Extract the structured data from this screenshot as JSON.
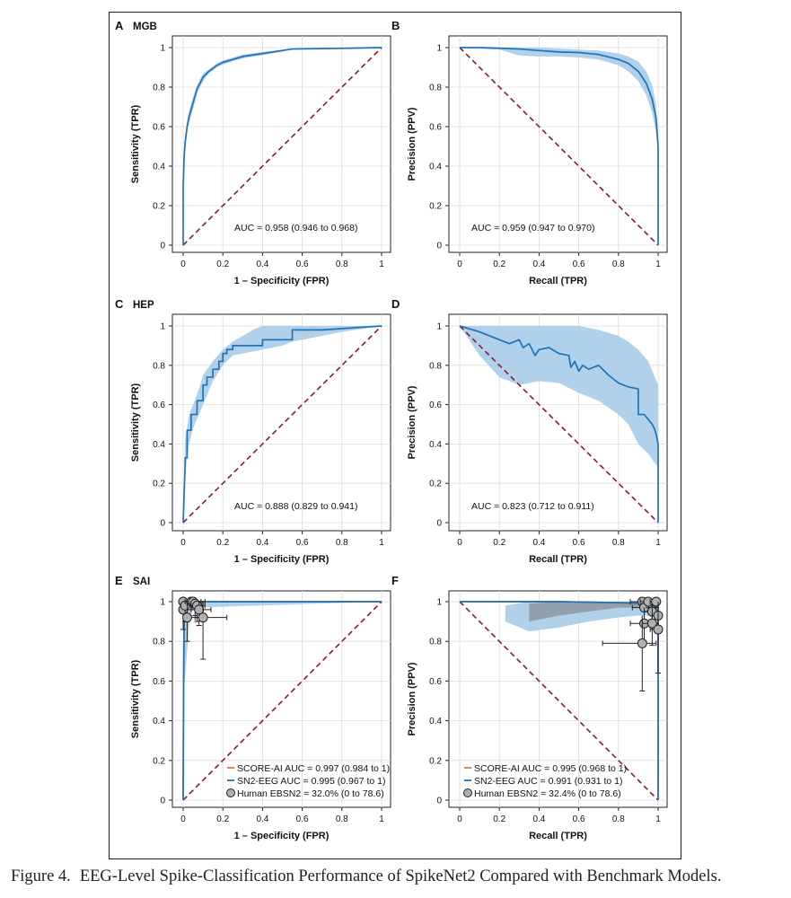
{
  "caption": {
    "label": "Figure 4.",
    "title": "EEG-Level Spike-Classification Performance of SpikeNet2 Compared with Benchmark Models."
  },
  "colors": {
    "curve": "#1f72b8",
    "band": "#a7cce7",
    "chance": "#8b1a2b",
    "score_ai": "#e07b39",
    "human_fill": "#b0b0b0",
    "human_band": "#8a8f99",
    "grid": "#dcdcdc"
  },
  "chart_data": [
    {
      "id": "A",
      "letter": "A",
      "title": "MGB",
      "type": "line",
      "xlabel": "1 – Specificity (FPR)",
      "ylabel": "Sensitivity (TPR)",
      "xlim": [
        0,
        1
      ],
      "ylim": [
        0,
        1
      ],
      "grid": true,
      "xticks": [
        "0",
        "0.2",
        "0.4",
        "0.6",
        "0.8",
        "1"
      ],
      "yticks": [
        "0",
        "0.2",
        "0.4",
        "0.6",
        "0.8",
        "1"
      ],
      "chance_line": "diagonal-up",
      "auc_text": "AUC = 0.958 (0.946 to 0.968)",
      "series": [
        {
          "x": [
            0,
            0,
            0.005,
            0.01,
            0.02,
            0.03,
            0.05,
            0.07,
            0.1,
            0.13,
            0.17,
            0.2,
            0.25,
            0.3,
            0.4,
            0.5,
            0.55,
            0.7,
            0.85,
            1
          ],
          "y": [
            0,
            0.3,
            0.45,
            0.52,
            0.6,
            0.65,
            0.72,
            0.79,
            0.85,
            0.88,
            0.91,
            0.925,
            0.94,
            0.955,
            0.97,
            0.985,
            0.993,
            0.995,
            0.997,
            1
          ]
        }
      ],
      "band": {
        "x": [
          0,
          0.005,
          0.01,
          0.02,
          0.03,
          0.05,
          0.07,
          0.1,
          0.13,
          0.17,
          0.2,
          0.25,
          0.3,
          0.4,
          0.5,
          0.55,
          0.7,
          1
        ],
        "lower": [
          0.27,
          0.42,
          0.49,
          0.57,
          0.62,
          0.69,
          0.77,
          0.83,
          0.87,
          0.9,
          0.915,
          0.93,
          0.945,
          0.962,
          0.98,
          0.99,
          0.993,
          1
        ],
        "upper": [
          0.33,
          0.48,
          0.55,
          0.63,
          0.68,
          0.75,
          0.81,
          0.87,
          0.89,
          0.92,
          0.935,
          0.95,
          0.965,
          0.978,
          0.99,
          0.996,
          0.997,
          1
        ]
      }
    },
    {
      "id": "B",
      "letter": "B",
      "title": "",
      "type": "line",
      "xlabel": "Recall (TPR)",
      "ylabel": "Precision (PPV)",
      "xlim": [
        0,
        1
      ],
      "ylim": [
        0,
        1
      ],
      "grid": true,
      "xticks": [
        "0",
        "0.2",
        "0.4",
        "0.6",
        "0.8",
        "1"
      ],
      "yticks": [
        "0",
        "0.2",
        "0.4",
        "0.6",
        "0.8",
        "1"
      ],
      "chance_line": "diagonal-down",
      "auc_text": "AUC = 0.959 (0.947 to 0.970)",
      "series": [
        {
          "x": [
            0,
            0.1,
            0.2,
            0.3,
            0.4,
            0.5,
            0.6,
            0.7,
            0.8,
            0.85,
            0.9,
            0.94,
            0.97,
            0.99,
            1,
            1
          ],
          "y": [
            1,
            1,
            0.997,
            0.993,
            0.985,
            0.978,
            0.975,
            0.965,
            0.94,
            0.92,
            0.88,
            0.82,
            0.74,
            0.64,
            0.5,
            0
          ]
        }
      ],
      "band": {
        "x": [
          0,
          0.2,
          0.3,
          0.4,
          0.5,
          0.6,
          0.7,
          0.8,
          0.85,
          0.9,
          0.94,
          0.97,
          0.99,
          1
        ],
        "lower": [
          1,
          0.99,
          0.96,
          0.955,
          0.955,
          0.95,
          0.94,
          0.91,
          0.88,
          0.83,
          0.76,
          0.67,
          0.57,
          0.45
        ],
        "upper": [
          1,
          1,
          1,
          1,
          0.995,
          0.99,
          0.985,
          0.97,
          0.955,
          0.93,
          0.88,
          0.81,
          0.71,
          0.55
        ]
      }
    },
    {
      "id": "C",
      "letter": "C",
      "title": "HEP",
      "type": "line",
      "xlabel": "1 – Specificity (FPR)",
      "ylabel": "Sensitivity (TPR)",
      "xlim": [
        0,
        1
      ],
      "ylim": [
        0,
        1
      ],
      "grid": true,
      "xticks": [
        "0",
        "0.2",
        "0.4",
        "0.6",
        "0.8",
        "1"
      ],
      "yticks": [
        "0",
        "0.2",
        "0.4",
        "0.6",
        "0.8",
        "1"
      ],
      "chance_line": "diagonal-up",
      "auc_text": "AUC = 0.888 (0.829 to 0.941)",
      "series": [
        {
          "x": [
            0,
            0.01,
            0.01,
            0.02,
            0.02,
            0.04,
            0.04,
            0.07,
            0.07,
            0.1,
            0.1,
            0.12,
            0.12,
            0.15,
            0.15,
            0.18,
            0.18,
            0.2,
            0.2,
            0.22,
            0.22,
            0.25,
            0.25,
            0.4,
            0.4,
            0.55,
            0.55,
            0.7,
            1
          ],
          "y": [
            0,
            0.3,
            0.33,
            0.33,
            0.47,
            0.47,
            0.55,
            0.55,
            0.62,
            0.62,
            0.7,
            0.7,
            0.74,
            0.74,
            0.78,
            0.78,
            0.82,
            0.82,
            0.86,
            0.86,
            0.88,
            0.88,
            0.9,
            0.9,
            0.93,
            0.93,
            0.98,
            0.98,
            1
          ]
        }
      ],
      "band": {
        "x": [
          0,
          0.01,
          0.03,
          0.05,
          0.08,
          0.1,
          0.15,
          0.2,
          0.25,
          0.3,
          0.35,
          0.4,
          0.5,
          0.55,
          0.6,
          0.7,
          0.8,
          1
        ],
        "lower": [
          0,
          0.25,
          0.4,
          0.48,
          0.55,
          0.6,
          0.72,
          0.8,
          0.85,
          0.86,
          0.87,
          0.88,
          0.9,
          0.92,
          0.93,
          0.95,
          0.97,
          1
        ],
        "upper": [
          0,
          0.42,
          0.55,
          0.6,
          0.68,
          0.75,
          0.82,
          0.88,
          0.92,
          0.95,
          0.98,
          1,
          1,
          1,
          1,
          1,
          1,
          1
        ]
      }
    },
    {
      "id": "D",
      "letter": "D",
      "title": "",
      "type": "line",
      "xlabel": "Recall (TPR)",
      "ylabel": "Precision (PPV)",
      "xlim": [
        0,
        1
      ],
      "ylim": [
        0,
        1
      ],
      "grid": true,
      "xticks": [
        "0",
        "0.2",
        "0.4",
        "0.6",
        "0.8",
        "1"
      ],
      "yticks": [
        "0",
        "0.2",
        "0.4",
        "0.6",
        "0.8",
        "1"
      ],
      "chance_line": "diagonal-down",
      "auc_text": "AUC = 0.823 (0.712 to 0.911)",
      "series": [
        {
          "x": [
            0,
            0.1,
            0.2,
            0.25,
            0.3,
            0.32,
            0.35,
            0.38,
            0.4,
            0.45,
            0.5,
            0.55,
            0.56,
            0.58,
            0.6,
            0.62,
            0.65,
            0.7,
            0.75,
            0.8,
            0.85,
            0.9,
            0.9,
            0.93,
            0.97,
            0.98,
            0.99,
            1,
            1
          ],
          "y": [
            1,
            0.97,
            0.93,
            0.91,
            0.93,
            0.89,
            0.91,
            0.85,
            0.88,
            0.89,
            0.86,
            0.85,
            0.79,
            0.82,
            0.77,
            0.8,
            0.78,
            0.8,
            0.75,
            0.71,
            0.69,
            0.68,
            0.55,
            0.55,
            0.5,
            0.48,
            0.45,
            0.4,
            0
          ]
        }
      ],
      "band": {
        "x": [
          0,
          0.1,
          0.2,
          0.3,
          0.4,
          0.5,
          0.6,
          0.7,
          0.8,
          0.85,
          0.9,
          0.95,
          1
        ],
        "lower": [
          1,
          0.85,
          0.74,
          0.7,
          0.72,
          0.71,
          0.66,
          0.62,
          0.55,
          0.5,
          0.4,
          0.35,
          0.28
        ],
        "upper": [
          1,
          1,
          1,
          1,
          1,
          1,
          1,
          0.98,
          0.95,
          0.92,
          0.88,
          0.82,
          0.7
        ]
      }
    },
    {
      "id": "E",
      "letter": "E",
      "title": "SAI",
      "type": "line",
      "xlabel": "1 – Specificity (FPR)",
      "ylabel": "Sensitivity (TPR)",
      "xlim": [
        0,
        1
      ],
      "ylim": [
        0,
        1
      ],
      "grid": true,
      "xticks": [
        "0",
        "0.2",
        "0.4",
        "0.6",
        "0.8",
        "1"
      ],
      "yticks": [
        "0",
        "0.2",
        "0.4",
        "0.6",
        "0.8",
        "1"
      ],
      "chance_line": "diagonal-up",
      "series": [
        {
          "name": "SCORE-AI",
          "color_key": "score_ai",
          "x": [
            0,
            0.002,
            0.004,
            0.006,
            0.01,
            0.02,
            1
          ],
          "y": [
            0,
            0.6,
            0.85,
            0.95,
            0.99,
            1,
            1
          ]
        },
        {
          "name": "SN2-EEG",
          "color_key": "curve",
          "x": [
            0,
            0.002,
            0.004,
            0.006,
            0.01,
            0.02,
            0.05,
            1
          ],
          "y": [
            0,
            0.5,
            0.8,
            0.9,
            0.95,
            1,
            1,
            1
          ]
        }
      ],
      "band": {
        "x": [
          0,
          0.003,
          0.01,
          0.02,
          0.03,
          0.05,
          1
        ],
        "lower": [
          0.3,
          0.55,
          0.63,
          0.75,
          0.88,
          0.97,
          1
        ],
        "upper": [
          0.6,
          0.9,
          0.97,
          1,
          1,
          1,
          1
        ]
      },
      "human_points": [
        {
          "x": 0.0,
          "y": 1.0,
          "x_lo": 0.0,
          "x_hi": 0.02,
          "y_lo": 0.97,
          "y_hi": 1.0
        },
        {
          "x": 0.0,
          "y": 0.96,
          "x_lo": 0.0,
          "x_hi": 0.02,
          "y_lo": 0.86,
          "y_hi": 1.0
        },
        {
          "x": 0.01,
          "y": 0.98,
          "x_lo": 0.0,
          "x_hi": 0.05,
          "y_lo": 0.9,
          "y_hi": 1.0
        },
        {
          "x": 0.02,
          "y": 0.92,
          "x_lo": 0.0,
          "x_hi": 0.09,
          "y_lo": 0.8,
          "y_hi": 1.0
        },
        {
          "x": 0.04,
          "y": 1.0,
          "x_lo": 0.01,
          "x_hi": 0.09,
          "y_lo": 0.96,
          "y_hi": 1.0
        },
        {
          "x": 0.05,
          "y": 1.0,
          "x_lo": 0.02,
          "x_hi": 0.11,
          "y_lo": 0.97,
          "y_hi": 1.0
        },
        {
          "x": 0.06,
          "y": 0.99,
          "x_lo": 0.02,
          "x_hi": 0.1,
          "y_lo": 0.93,
          "y_hi": 1.0
        },
        {
          "x": 0.07,
          "y": 0.98,
          "x_lo": 0.04,
          "x_hi": 0.11,
          "y_lo": 0.9,
          "y_hi": 1.0
        },
        {
          "x": 0.08,
          "y": 0.96,
          "x_lo": 0.04,
          "x_hi": 0.14,
          "y_lo": 0.88,
          "y_hi": 1.0
        },
        {
          "x": 0.1,
          "y": 0.92,
          "x_lo": 0.06,
          "x_hi": 0.22,
          "y_lo": 0.71,
          "y_hi": 1.0
        }
      ],
      "legend": [
        {
          "label": "SCORE-AI AUC = 0.997 (0.984 to 1)",
          "marker": "line",
          "color_key": "score_ai"
        },
        {
          "label": "SN2-EEG   AUC = 0.995 (0.967 to 1)",
          "marker": "line",
          "color_key": "curve"
        },
        {
          "label": "Human EBSN2 = 32.0% (0 to 78.6)",
          "marker": "circle",
          "color_key": "human_fill"
        }
      ]
    },
    {
      "id": "F",
      "letter": "F",
      "title": "",
      "type": "line",
      "xlabel": "Recall (TPR)",
      "ylabel": "Precision (PPV)",
      "xlim": [
        0,
        1
      ],
      "ylim": [
        0,
        1
      ],
      "grid": true,
      "xticks": [
        "0",
        "0.2",
        "0.4",
        "0.6",
        "0.8",
        "1"
      ],
      "yticks": [
        "0",
        "0.2",
        "0.4",
        "0.6",
        "0.8",
        "1"
      ],
      "chance_line": "diagonal-down",
      "series": [
        {
          "name": "SCORE-AI",
          "color_key": "score_ai",
          "x": [
            0,
            0.5,
            0.8,
            0.95,
            1,
            1
          ],
          "y": [
            1,
            1,
            0.995,
            0.99,
            0.98,
            0
          ]
        },
        {
          "name": "SN2-EEG",
          "color_key": "curve",
          "x": [
            0,
            0.5,
            0.8,
            0.95,
            1,
            1
          ],
          "y": [
            1,
            1,
            0.995,
            0.99,
            0.97,
            0
          ]
        }
      ],
      "band": {
        "x": [
          0.23,
          0.35,
          0.5,
          0.65,
          0.8,
          0.9,
          1
        ],
        "lower": [
          0.9,
          0.85,
          0.87,
          0.9,
          0.92,
          0.93,
          0.93
        ],
        "upper": [
          0.98,
          1,
          1,
          1,
          1,
          1,
          1
        ]
      },
      "band2": {
        "x": [
          0.35,
          0.5,
          0.65,
          0.8,
          0.9,
          1
        ],
        "lower": [
          0.9,
          0.93,
          0.95,
          0.97,
          0.97,
          0.97
        ],
        "upper": [
          0.99,
          1,
          1,
          1,
          1,
          1
        ]
      },
      "human_points": [
        {
          "x": 0.92,
          "y": 1.0,
          "x_lo": 0.86,
          "x_hi": 0.98,
          "y_lo": 0.97,
          "y_hi": 1.0
        },
        {
          "x": 0.93,
          "y": 0.97,
          "x_lo": 0.87,
          "x_hi": 0.99,
          "y_lo": 0.9,
          "y_hi": 1.0
        },
        {
          "x": 0.93,
          "y": 0.89,
          "x_lo": 0.86,
          "x_hi": 1.0,
          "y_lo": 0.8,
          "y_hi": 0.97
        },
        {
          "x": 0.92,
          "y": 0.79,
          "x_lo": 0.72,
          "x_hi": 0.99,
          "y_lo": 0.55,
          "y_hi": 0.93
        },
        {
          "x": 0.95,
          "y": 1.0,
          "x_lo": 0.91,
          "x_hi": 1.0,
          "y_lo": 0.97,
          "y_hi": 1.0
        },
        {
          "x": 0.97,
          "y": 0.95,
          "x_lo": 0.93,
          "x_hi": 1.0,
          "y_lo": 0.88,
          "y_hi": 1.0
        },
        {
          "x": 0.97,
          "y": 0.89,
          "x_lo": 0.92,
          "x_hi": 1.0,
          "y_lo": 0.78,
          "y_hi": 0.98
        },
        {
          "x": 0.99,
          "y": 1.0,
          "x_lo": 0.96,
          "x_hi": 1.0,
          "y_lo": 0.97,
          "y_hi": 1.0
        },
        {
          "x": 1.0,
          "y": 0.93,
          "x_lo": 0.97,
          "x_hi": 1.0,
          "y_lo": 0.85,
          "y_hi": 1.0
        },
        {
          "x": 1.0,
          "y": 0.86,
          "x_lo": 0.96,
          "x_hi": 1.0,
          "y_lo": 0.64,
          "y_hi": 0.97
        }
      ],
      "legend": [
        {
          "label": "SCORE-AI AUC = 0.995 (0.968 to 1)",
          "marker": "line",
          "color_key": "score_ai"
        },
        {
          "label": "SN2-EEG   AUC = 0.991 (0.931 to 1)",
          "marker": "line",
          "color_key": "curve"
        },
        {
          "label": "Human EBSN2 = 32.4% (0 to 78.6)",
          "marker": "circle",
          "color_key": "human_fill"
        }
      ]
    }
  ]
}
